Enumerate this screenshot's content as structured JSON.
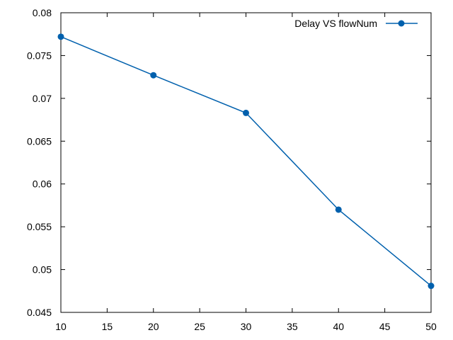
{
  "chart_data": {
    "type": "line",
    "title": "",
    "xlabel": "",
    "ylabel": "",
    "xlim": [
      10,
      50
    ],
    "ylim": [
      0.045,
      0.08
    ],
    "x_ticks": [
      "10",
      "15",
      "20",
      "25",
      "30",
      "35",
      "40",
      "45",
      "50"
    ],
    "y_ticks": [
      "0.045",
      "0.05",
      "0.055",
      "0.06",
      "0.065",
      "0.07",
      "0.075",
      "0.08"
    ],
    "grid": false,
    "legend_position": "top-right",
    "series": [
      {
        "name": "Delay VS flowNum",
        "color": "#0060ad",
        "marker": "circle",
        "x": [
          10,
          20,
          30,
          40,
          50
        ],
        "y": [
          0.0772,
          0.0727,
          0.0683,
          0.057,
          0.0481
        ]
      }
    ]
  }
}
